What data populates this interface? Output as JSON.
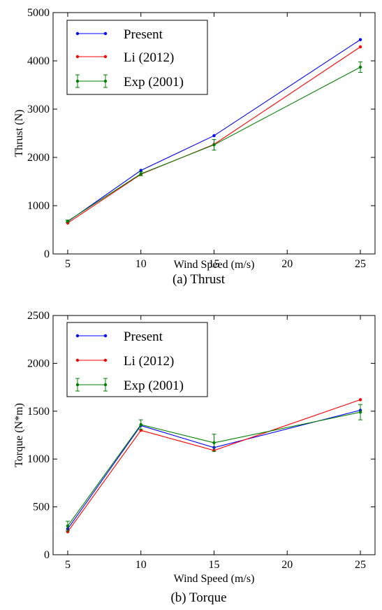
{
  "chart_data": [
    {
      "type": "line",
      "caption": "(a) Thrust",
      "xlabel": "Wind Speed (m/s)",
      "ylabel": "Thrust (N)",
      "xlim": [
        4,
        26
      ],
      "ylim": [
        0,
        5000
      ],
      "x_ticks": [
        "5",
        "10",
        "15",
        "20",
        "25"
      ],
      "y_ticks": [
        "0",
        "1000",
        "2000",
        "3000",
        "4000",
        "5000"
      ],
      "grid": false,
      "legend_position": "top-left",
      "series": [
        {
          "name": "Present",
          "color": "#0000ff",
          "x": [
            5,
            10,
            15,
            25
          ],
          "y": [
            670,
            1730,
            2450,
            4440
          ]
        },
        {
          "name": "Li (2012)",
          "color": "#ff0000",
          "x": [
            5,
            10,
            15,
            25
          ],
          "y": [
            640,
            1650,
            2270,
            4290
          ]
        },
        {
          "name": "Exp (2001)",
          "color": "#008000",
          "x": [
            5,
            10,
            15,
            25
          ],
          "y": [
            680,
            1660,
            2260,
            3870
          ],
          "error": [
            20,
            40,
            110,
            110
          ]
        }
      ]
    },
    {
      "type": "line",
      "caption": "(b) Torque",
      "xlabel": "Wind Speed (m/s)",
      "ylabel": "Torque (N*m)",
      "xlim": [
        4,
        26
      ],
      "ylim": [
        0,
        2500
      ],
      "x_ticks": [
        "5",
        "10",
        "15",
        "20",
        "25"
      ],
      "y_ticks": [
        "0",
        "500",
        "1000",
        "1500",
        "2000",
        "2500"
      ],
      "grid": false,
      "legend_position": "top-left",
      "series": [
        {
          "name": "Present",
          "color": "#0000ff",
          "x": [
            5,
            10,
            15,
            25
          ],
          "y": [
            270,
            1350,
            1120,
            1510
          ]
        },
        {
          "name": "Li (2012)",
          "color": "#ff0000",
          "x": [
            5,
            10,
            15,
            25
          ],
          "y": [
            240,
            1300,
            1090,
            1620
          ]
        },
        {
          "name": "Exp (2001)",
          "color": "#008000",
          "x": [
            5,
            10,
            15,
            25
          ],
          "y": [
            300,
            1360,
            1170,
            1490
          ],
          "error": [
            50,
            50,
            90,
            80
          ]
        }
      ]
    }
  ]
}
